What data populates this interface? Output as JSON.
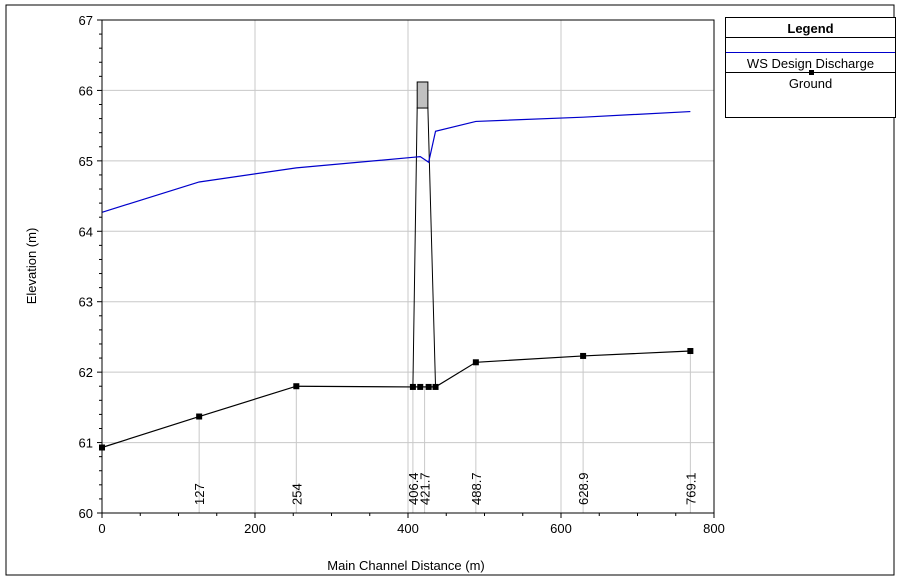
{
  "chart_data": {
    "type": "line",
    "xlabel": "Main Channel Distance (m)",
    "ylabel": "Elevation (m)",
    "xlim": [
      0,
      800
    ],
    "ylim": [
      60,
      67
    ],
    "xticks": [
      0,
      200,
      400,
      600,
      800
    ],
    "yticks": [
      60,
      61,
      62,
      63,
      64,
      65,
      66,
      67
    ],
    "grid": true,
    "legend_position": "right",
    "legend_title": "Legend",
    "series": [
      {
        "name": "WS Design Discharge",
        "color": "#0000cc",
        "x": [
          0,
          127,
          254,
          406.4,
          416,
          421.7,
          427,
          436,
          488.7,
          628.9,
          769.1
        ],
        "y": [
          64.27,
          64.7,
          64.9,
          65.05,
          65.06,
          65.02,
          64.98,
          65.42,
          65.56,
          65.62,
          65.7
        ]
      },
      {
        "name": "Ground",
        "color": "#000000",
        "x": [
          0,
          127,
          254,
          406.4,
          416,
          427,
          436,
          488.7,
          628.9,
          769.1
        ],
        "y": [
          60.93,
          61.37,
          61.8,
          61.79,
          61.79,
          61.79,
          61.79,
          62.14,
          62.23,
          62.3
        ]
      }
    ],
    "structure": {
      "type": "bridge",
      "x_left": 412,
      "x_right": 426,
      "low_chord": 65.75,
      "high_chord": 66.12,
      "fill": "#c0c0c0"
    },
    "station_labels": [
      {
        "x": 127,
        "label": "127"
      },
      {
        "x": 254,
        "label": "254"
      },
      {
        "x": 406.4,
        "label": "406.4"
      },
      {
        "x": 421.7,
        "label": "421.7"
      },
      {
        "x": 488.7,
        "label": "488.7"
      },
      {
        "x": 628.9,
        "label": "628.9"
      },
      {
        "x": 769.1,
        "label": "769.1"
      }
    ]
  }
}
